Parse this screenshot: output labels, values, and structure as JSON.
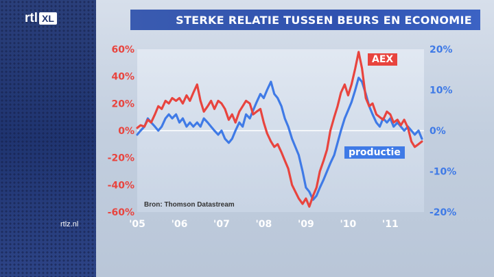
{
  "header": {
    "logo_rtl": "rtl",
    "logo_xl": "XL",
    "title": "STERKE RELATIE TUSSEN BEURS EN ECONOMIE",
    "site": "rtlz.nl"
  },
  "colors": {
    "aex": "#e8443e",
    "productie": "#3f7ae6",
    "left_axis": "#e8443e",
    "right_axis": "#3f7ae6",
    "title_bar": "#3358b5"
  },
  "chart_data": {
    "type": "line",
    "title": "STERKE RELATIE TUSSEN BEURS EN ECONOMIE",
    "source": "Bron: Thomson Datastream",
    "x_ticks": [
      "'05",
      "'06",
      "'07",
      "'08",
      "'09",
      "'10",
      "'11"
    ],
    "x_range": [
      2005.0,
      2011.8
    ],
    "y_left": {
      "range": [
        -60,
        60
      ],
      "ticks": [
        "60%",
        "40%",
        "20%",
        "0%",
        "-20%",
        "-40%",
        "-60%"
      ],
      "values": [
        60,
        40,
        20,
        0,
        -20,
        -40,
        -60
      ]
    },
    "y_right": {
      "range": [
        -20,
        20
      ],
      "ticks": [
        "20%",
        "10%",
        "0%",
        "-10%",
        "-20%"
      ],
      "values": [
        20,
        10,
        0,
        -10,
        -20
      ]
    },
    "series": [
      {
        "name": "AEX",
        "axis": "left",
        "points": [
          [
            2005.0,
            2
          ],
          [
            2005.08,
            4
          ],
          [
            2005.17,
            3
          ],
          [
            2005.25,
            8
          ],
          [
            2005.33,
            6
          ],
          [
            2005.42,
            12
          ],
          [
            2005.5,
            18
          ],
          [
            2005.58,
            16
          ],
          [
            2005.67,
            22
          ],
          [
            2005.75,
            20
          ],
          [
            2005.83,
            24
          ],
          [
            2005.92,
            22
          ],
          [
            2006.0,
            24
          ],
          [
            2006.08,
            20
          ],
          [
            2006.17,
            26
          ],
          [
            2006.25,
            22
          ],
          [
            2006.33,
            28
          ],
          [
            2006.42,
            34
          ],
          [
            2006.5,
            22
          ],
          [
            2006.58,
            14
          ],
          [
            2006.67,
            18
          ],
          [
            2006.75,
            22
          ],
          [
            2006.83,
            16
          ],
          [
            2006.92,
            22
          ],
          [
            2007.0,
            20
          ],
          [
            2007.08,
            16
          ],
          [
            2007.17,
            8
          ],
          [
            2007.25,
            12
          ],
          [
            2007.33,
            6
          ],
          [
            2007.42,
            14
          ],
          [
            2007.5,
            18
          ],
          [
            2007.58,
            22
          ],
          [
            2007.67,
            20
          ],
          [
            2007.75,
            12
          ],
          [
            2007.83,
            14
          ],
          [
            2007.92,
            16
          ],
          [
            2008.0,
            6
          ],
          [
            2008.08,
            -2
          ],
          [
            2008.17,
            -8
          ],
          [
            2008.25,
            -12
          ],
          [
            2008.33,
            -10
          ],
          [
            2008.42,
            -16
          ],
          [
            2008.5,
            -22
          ],
          [
            2008.58,
            -28
          ],
          [
            2008.67,
            -40
          ],
          [
            2008.75,
            -45
          ],
          [
            2008.83,
            -50
          ],
          [
            2008.92,
            -54
          ],
          [
            2009.0,
            -50
          ],
          [
            2009.08,
            -56
          ],
          [
            2009.17,
            -48
          ],
          [
            2009.25,
            -42
          ],
          [
            2009.33,
            -30
          ],
          [
            2009.42,
            -22
          ],
          [
            2009.5,
            -14
          ],
          [
            2009.58,
            0
          ],
          [
            2009.67,
            10
          ],
          [
            2009.75,
            18
          ],
          [
            2009.83,
            28
          ],
          [
            2009.92,
            34
          ],
          [
            2010.0,
            26
          ],
          [
            2010.08,
            34
          ],
          [
            2010.17,
            46
          ],
          [
            2010.25,
            58
          ],
          [
            2010.33,
            46
          ],
          [
            2010.42,
            24
          ],
          [
            2010.5,
            18
          ],
          [
            2010.58,
            20
          ],
          [
            2010.67,
            12
          ],
          [
            2010.75,
            10
          ],
          [
            2010.83,
            8
          ],
          [
            2010.92,
            14
          ],
          [
            2011.0,
            12
          ],
          [
            2011.08,
            6
          ],
          [
            2011.17,
            8
          ],
          [
            2011.25,
            4
          ],
          [
            2011.33,
            8
          ],
          [
            2011.42,
            2
          ],
          [
            2011.5,
            -8
          ],
          [
            2011.58,
            -12
          ],
          [
            2011.67,
            -10
          ],
          [
            2011.75,
            -8
          ]
        ]
      },
      {
        "name": "productie",
        "axis": "right",
        "points": [
          [
            2005.0,
            -1
          ],
          [
            2005.08,
            0
          ],
          [
            2005.17,
            1
          ],
          [
            2005.25,
            3
          ],
          [
            2005.33,
            2
          ],
          [
            2005.42,
            1
          ],
          [
            2005.5,
            0
          ],
          [
            2005.58,
            1
          ],
          [
            2005.67,
            3
          ],
          [
            2005.75,
            4
          ],
          [
            2005.83,
            3
          ],
          [
            2005.92,
            4
          ],
          [
            2006.0,
            2
          ],
          [
            2006.08,
            3
          ],
          [
            2006.17,
            1
          ],
          [
            2006.25,
            2
          ],
          [
            2006.33,
            1
          ],
          [
            2006.42,
            2
          ],
          [
            2006.5,
            1
          ],
          [
            2006.58,
            3
          ],
          [
            2006.67,
            2
          ],
          [
            2006.75,
            1
          ],
          [
            2006.83,
            0
          ],
          [
            2006.92,
            -1
          ],
          [
            2007.0,
            0
          ],
          [
            2007.08,
            -2
          ],
          [
            2007.17,
            -3
          ],
          [
            2007.25,
            -2
          ],
          [
            2007.33,
            0
          ],
          [
            2007.42,
            2
          ],
          [
            2007.5,
            1
          ],
          [
            2007.58,
            4
          ],
          [
            2007.67,
            3
          ],
          [
            2007.75,
            5
          ],
          [
            2007.83,
            7
          ],
          [
            2007.92,
            9
          ],
          [
            2008.0,
            8
          ],
          [
            2008.08,
            10
          ],
          [
            2008.17,
            12
          ],
          [
            2008.25,
            9
          ],
          [
            2008.33,
            8
          ],
          [
            2008.42,
            6
          ],
          [
            2008.5,
            3
          ],
          [
            2008.58,
            1
          ],
          [
            2008.67,
            -2
          ],
          [
            2008.75,
            -4
          ],
          [
            2008.83,
            -6
          ],
          [
            2008.92,
            -10
          ],
          [
            2009.0,
            -14
          ],
          [
            2009.08,
            -15
          ],
          [
            2009.17,
            -17
          ],
          [
            2009.25,
            -16
          ],
          [
            2009.33,
            -14
          ],
          [
            2009.42,
            -12
          ],
          [
            2009.5,
            -10
          ],
          [
            2009.58,
            -8
          ],
          [
            2009.67,
            -6
          ],
          [
            2009.75,
            -3
          ],
          [
            2009.83,
            0
          ],
          [
            2009.92,
            3
          ],
          [
            2010.0,
            5
          ],
          [
            2010.08,
            7
          ],
          [
            2010.17,
            10
          ],
          [
            2010.25,
            13
          ],
          [
            2010.33,
            12
          ],
          [
            2010.42,
            9
          ],
          [
            2010.5,
            6
          ],
          [
            2010.58,
            4
          ],
          [
            2010.67,
            2
          ],
          [
            2010.75,
            1
          ],
          [
            2010.83,
            3
          ],
          [
            2010.92,
            2
          ],
          [
            2011.0,
            3
          ],
          [
            2011.08,
            1
          ],
          [
            2011.17,
            2
          ],
          [
            2011.25,
            1
          ],
          [
            2011.33,
            0
          ],
          [
            2011.42,
            1
          ],
          [
            2011.5,
            0
          ],
          [
            2011.58,
            -1
          ],
          [
            2011.67,
            0
          ],
          [
            2011.75,
            -2
          ]
        ]
      }
    ],
    "labels": [
      {
        "text": "AEX",
        "series": "AEX"
      },
      {
        "text": "productie",
        "series": "productie"
      }
    ]
  }
}
